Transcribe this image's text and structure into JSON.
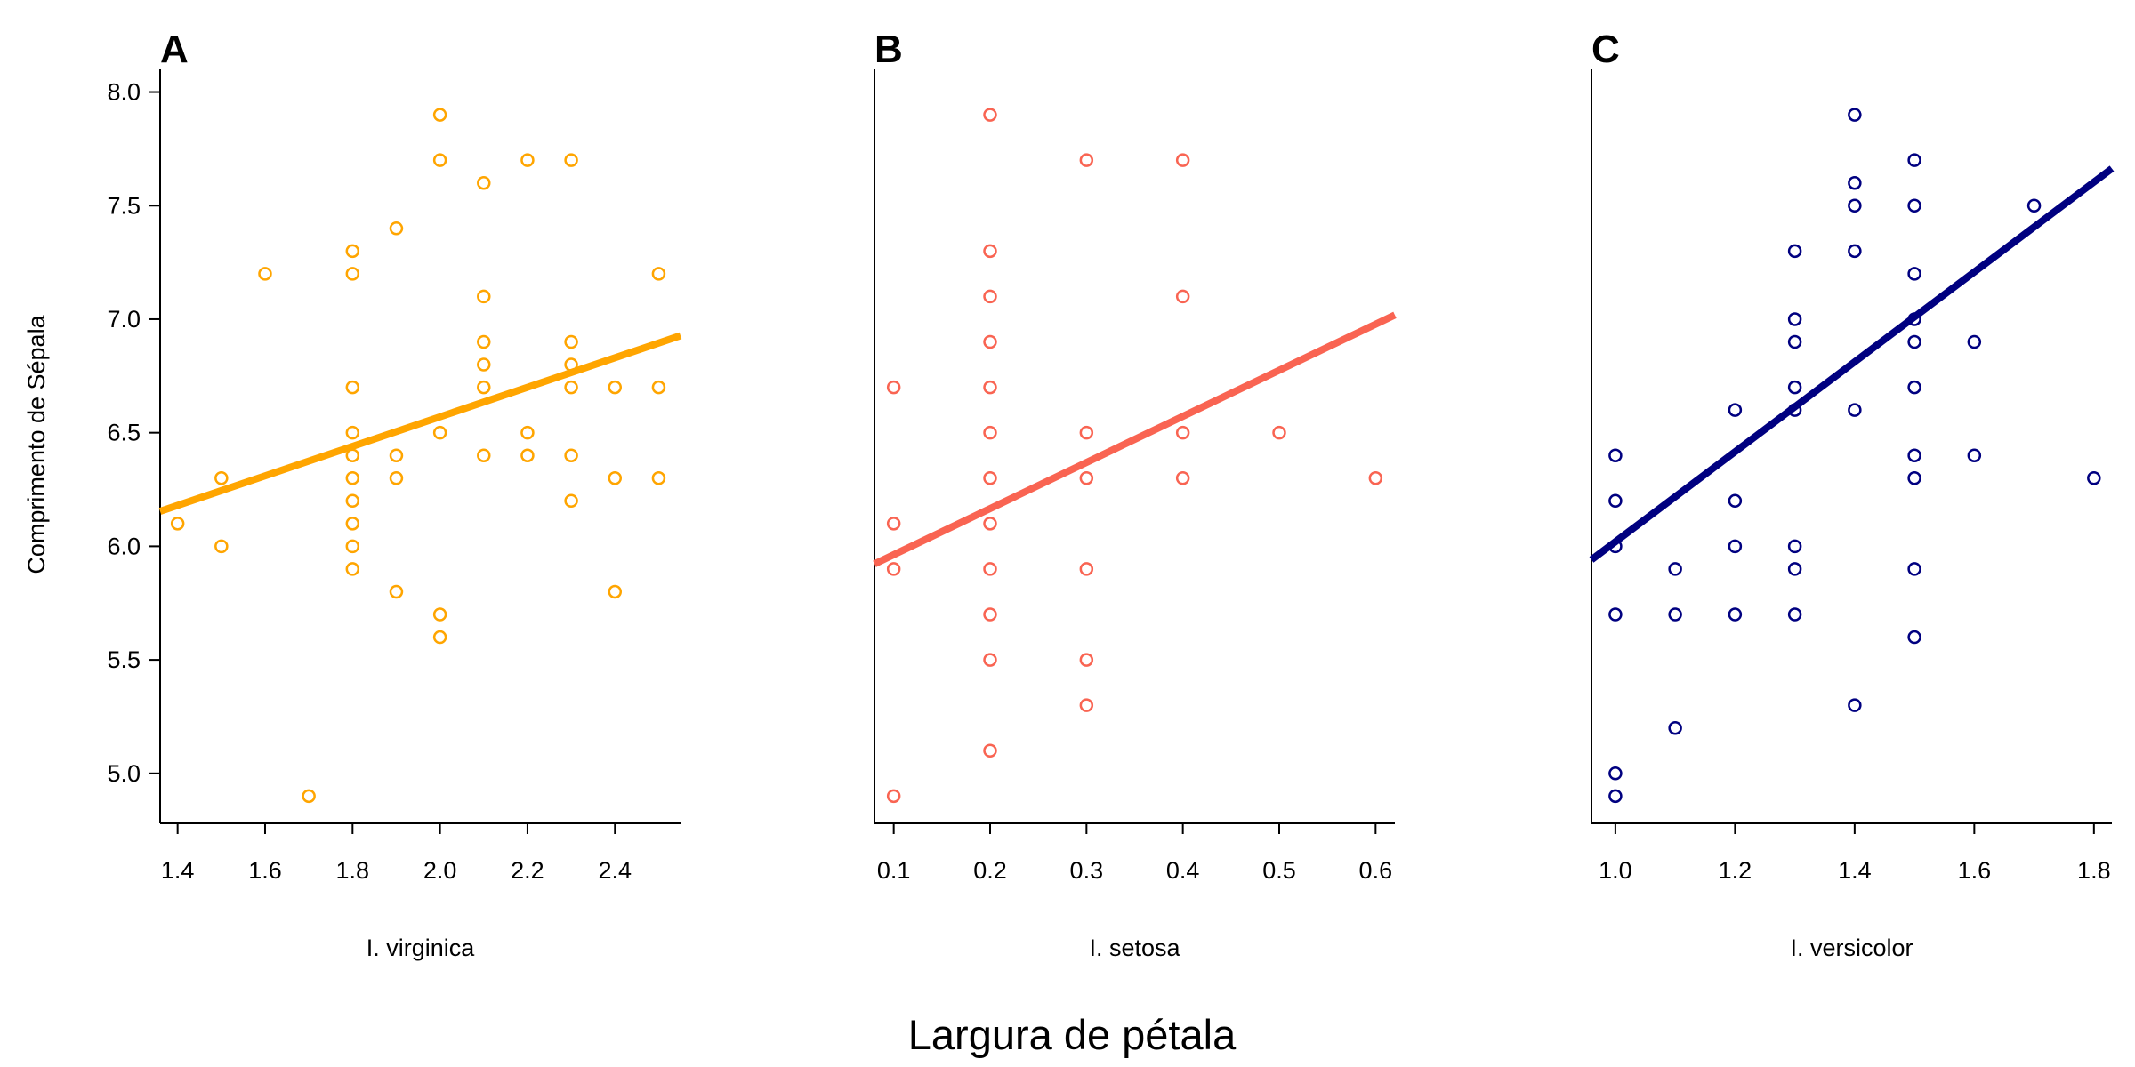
{
  "figure": {
    "common_xlabel": "Largura de pétala",
    "ylabel": "Comprimento de Sépala"
  },
  "chart_data": [
    {
      "type": "scatter",
      "panel": "A",
      "xlabel": "I. virginica",
      "ylabel": "Comprimento de Sépala",
      "color": "#FFA500",
      "xlim": [
        1.36,
        2.55
      ],
      "ylim": [
        4.78,
        8.1
      ],
      "xticks": [
        "1.4",
        "1.6",
        "1.8",
        "2.0",
        "2.2",
        "2.4"
      ],
      "yticks": [
        "5.0",
        "5.5",
        "6.0",
        "6.5",
        "7.0",
        "7.5",
        "8.0"
      ],
      "show_yticks": true,
      "points": [
        [
          1.4,
          6.1
        ],
        [
          1.5,
          6.3
        ],
        [
          1.5,
          6.0
        ],
        [
          1.6,
          7.2
        ],
        [
          1.7,
          4.9
        ],
        [
          1.8,
          7.3
        ],
        [
          1.8,
          7.2
        ],
        [
          1.8,
          6.7
        ],
        [
          1.8,
          6.5
        ],
        [
          1.8,
          6.4
        ],
        [
          1.8,
          6.3
        ],
        [
          1.8,
          6.2
        ],
        [
          1.8,
          6.1
        ],
        [
          1.8,
          6.0
        ],
        [
          1.8,
          5.9
        ],
        [
          1.9,
          7.4
        ],
        [
          1.9,
          6.4
        ],
        [
          1.9,
          6.3
        ],
        [
          1.9,
          5.8
        ],
        [
          2.0,
          7.9
        ],
        [
          2.0,
          7.7
        ],
        [
          2.0,
          6.5
        ],
        [
          2.0,
          5.7
        ],
        [
          2.0,
          5.6
        ],
        [
          2.1,
          7.6
        ],
        [
          2.1,
          7.1
        ],
        [
          2.1,
          6.9
        ],
        [
          2.1,
          6.8
        ],
        [
          2.1,
          6.7
        ],
        [
          2.1,
          6.4
        ],
        [
          2.2,
          7.7
        ],
        [
          2.2,
          6.5
        ],
        [
          2.2,
          6.4
        ],
        [
          2.3,
          7.7
        ],
        [
          2.3,
          6.9
        ],
        [
          2.3,
          6.8
        ],
        [
          2.3,
          6.7
        ],
        [
          2.3,
          6.4
        ],
        [
          2.3,
          6.2
        ],
        [
          2.4,
          6.7
        ],
        [
          2.4,
          6.3
        ],
        [
          2.4,
          5.8
        ],
        [
          2.5,
          7.2
        ],
        [
          2.5,
          6.7
        ],
        [
          2.5,
          6.3
        ]
      ],
      "fit": {
        "intercept": 5.27,
        "slope": 0.65
      }
    },
    {
      "type": "scatter",
      "panel": "B",
      "xlabel": "I. setosa",
      "ylabel": "",
      "color": "#F96452",
      "xlim": [
        0.08,
        0.62
      ],
      "ylim": [
        4.78,
        8.1
      ],
      "xticks": [
        "0.1",
        "0.2",
        "0.3",
        "0.4",
        "0.5",
        "0.6"
      ],
      "yticks": [],
      "show_yticks": false,
      "points": [
        [
          0.1,
          6.7
        ],
        [
          0.1,
          6.1
        ],
        [
          0.1,
          5.9
        ],
        [
          0.1,
          4.9
        ],
        [
          0.2,
          7.9
        ],
        [
          0.2,
          7.3
        ],
        [
          0.2,
          7.1
        ],
        [
          0.2,
          6.9
        ],
        [
          0.2,
          6.7
        ],
        [
          0.2,
          6.5
        ],
        [
          0.2,
          6.3
        ],
        [
          0.2,
          6.1
        ],
        [
          0.2,
          5.9
        ],
        [
          0.2,
          5.7
        ],
        [
          0.2,
          5.5
        ],
        [
          0.2,
          5.1
        ],
        [
          0.3,
          7.7
        ],
        [
          0.3,
          6.5
        ],
        [
          0.3,
          6.3
        ],
        [
          0.3,
          5.9
        ],
        [
          0.3,
          5.5
        ],
        [
          0.3,
          5.3
        ],
        [
          0.4,
          7.7
        ],
        [
          0.4,
          7.1
        ],
        [
          0.4,
          6.5
        ],
        [
          0.4,
          6.3
        ],
        [
          0.5,
          6.5
        ],
        [
          0.6,
          6.3
        ]
      ],
      "fit": {
        "intercept": 5.76,
        "slope": 2.03
      }
    },
    {
      "type": "scatter",
      "panel": "C",
      "xlabel": "I. versicolor",
      "ylabel": "",
      "color": "#000080",
      "xlim": [
        0.96,
        1.83
      ],
      "ylim": [
        4.78,
        8.1
      ],
      "xticks": [
        "1.0",
        "1.2",
        "1.4",
        "1.6",
        "1.8"
      ],
      "yticks": [],
      "show_yticks": false,
      "points": [
        [
          1.0,
          6.4
        ],
        [
          1.0,
          6.2
        ],
        [
          1.0,
          6.0
        ],
        [
          1.0,
          5.7
        ],
        [
          1.0,
          5.0
        ],
        [
          1.0,
          4.9
        ],
        [
          1.1,
          5.9
        ],
        [
          1.1,
          5.7
        ],
        [
          1.1,
          5.2
        ],
        [
          1.2,
          6.6
        ],
        [
          1.2,
          6.2
        ],
        [
          1.2,
          6.0
        ],
        [
          1.2,
          5.7
        ],
        [
          1.3,
          7.3
        ],
        [
          1.3,
          7.0
        ],
        [
          1.3,
          6.9
        ],
        [
          1.3,
          6.7
        ],
        [
          1.3,
          6.6
        ],
        [
          1.3,
          6.0
        ],
        [
          1.3,
          5.9
        ],
        [
          1.3,
          5.7
        ],
        [
          1.4,
          7.9
        ],
        [
          1.4,
          7.6
        ],
        [
          1.4,
          7.5
        ],
        [
          1.4,
          7.3
        ],
        [
          1.4,
          6.6
        ],
        [
          1.4,
          5.3
        ],
        [
          1.5,
          7.7
        ],
        [
          1.5,
          7.5
        ],
        [
          1.5,
          7.2
        ],
        [
          1.5,
          7.0
        ],
        [
          1.5,
          6.9
        ],
        [
          1.5,
          6.7
        ],
        [
          1.5,
          6.4
        ],
        [
          1.5,
          6.3
        ],
        [
          1.5,
          5.9
        ],
        [
          1.5,
          5.6
        ],
        [
          1.6,
          6.9
        ],
        [
          1.6,
          6.4
        ],
        [
          1.7,
          7.5
        ],
        [
          1.8,
          6.3
        ]
      ],
      "fit": {
        "intercept": 4.04,
        "slope": 1.98
      }
    }
  ]
}
